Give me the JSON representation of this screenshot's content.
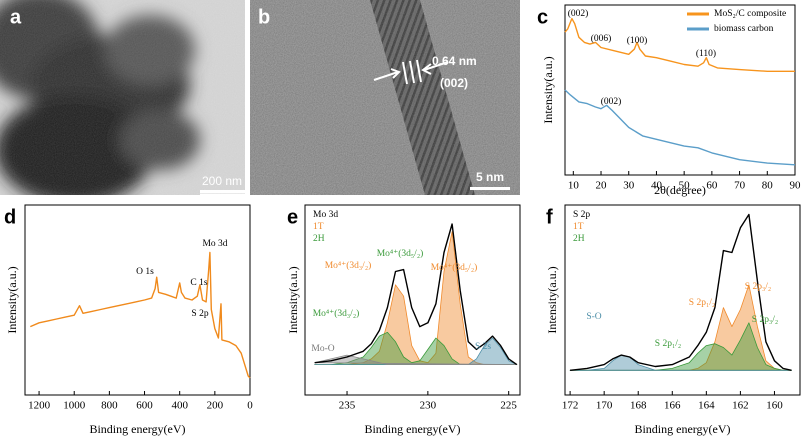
{
  "images": [
    {
      "panel": "a",
      "scale_bar": "200 nm"
    },
    {
      "panel": "b",
      "scale_bar": "5 nm",
      "annotations": [
        "0.64 nm",
        "(002)"
      ]
    }
  ],
  "chart_data": [
    {
      "type": "line",
      "panel": "c",
      "xlabel": "2θ(degree)",
      "ylabel": "Intensity(a.u.)",
      "xlim": [
        7,
        90
      ],
      "xticks": [
        10,
        20,
        30,
        40,
        50,
        60,
        70,
        80,
        90
      ],
      "ylim": [
        0,
        10
      ],
      "legend": "upper right",
      "series": [
        {
          "name": "MoS₂/C composite",
          "color": "#f7941d",
          "x": [
            7,
            8,
            9,
            9.5,
            10.5,
            12,
            14,
            16,
            18,
            20,
            25,
            30,
            32,
            33,
            34,
            36,
            40,
            45,
            50,
            55,
            57,
            58,
            59,
            62,
            70,
            80,
            90
          ],
          "values": [
            8.4,
            8.6,
            9.0,
            9.2,
            8.9,
            8.1,
            7.8,
            7.7,
            7.8,
            7.5,
            7.3,
            7.1,
            7.4,
            7.8,
            7.4,
            7.0,
            6.9,
            6.7,
            6.5,
            6.4,
            6.6,
            6.9,
            6.5,
            6.3,
            6.2,
            6.1,
            6.1
          ]
        },
        {
          "name": "biomass carbon",
          "color": "#5b9ec9",
          "x": [
            7,
            9,
            12,
            15,
            18,
            20,
            22,
            24,
            27,
            30,
            35,
            40,
            45,
            50,
            55,
            60,
            70,
            80,
            90
          ],
          "values": [
            5.0,
            4.7,
            4.3,
            4.2,
            4.0,
            3.9,
            4.1,
            3.8,
            3.3,
            2.8,
            2.3,
            2.1,
            1.9,
            1.7,
            1.6,
            1.3,
            0.9,
            0.7,
            0.6
          ]
        }
      ],
      "annotations": [
        {
          "text": "(002)",
          "color": "#000000"
        },
        {
          "text": "(006)",
          "color": "#000000"
        },
        {
          "text": "(100)",
          "color": "#000000"
        },
        {
          "text": "(110)",
          "color": "#000000"
        },
        {
          "text": "(002)",
          "color": "#000000"
        }
      ]
    },
    {
      "type": "line",
      "panel": "d",
      "xlabel": "Binding energy(eV)",
      "ylabel": "Intensity(a.u.)",
      "xlim": [
        1280,
        0
      ],
      "xticks": [
        1200,
        1000,
        800,
        600,
        400,
        200,
        0
      ],
      "ylim": [
        0,
        10
      ],
      "x": [
        1250,
        1200,
        1150,
        1100,
        1050,
        1000,
        970,
        950,
        900,
        850,
        800,
        750,
        700,
        650,
        600,
        560,
        540,
        531,
        520,
        480,
        450,
        420,
        400,
        390,
        370,
        330,
        300,
        285,
        270,
        250,
        235,
        228,
        220,
        200,
        180,
        165,
        160,
        120,
        80,
        50,
        30,
        10,
        0
      ],
      "series": [
        {
          "color": "#f08a1c",
          "values": [
            3.6,
            3.8,
            3.9,
            4.0,
            4.1,
            4.2,
            4.7,
            4.3,
            4.4,
            4.5,
            4.6,
            4.7,
            4.8,
            4.9,
            5.0,
            5.1,
            5.6,
            6.2,
            5.4,
            5.3,
            5.2,
            5.1,
            5.9,
            5.4,
            5.1,
            5.0,
            5.2,
            5.8,
            5.0,
            4.9,
            6.6,
            7.5,
            4.5,
            3.5,
            3.0,
            4.8,
            2.9,
            2.8,
            2.6,
            2.2,
            1.6,
            1.0,
            0.9
          ]
        }
      ],
      "annotations": [
        {
          "text": "O 1s",
          "color": "#000000"
        },
        {
          "text": "C 1s",
          "color": "#000000"
        },
        {
          "text": "Mo 3d",
          "color": "#000000"
        },
        {
          "text": "S 2p",
          "color": "#000000"
        }
      ]
    },
    {
      "type": "line",
      "panel": "e",
      "xlabel": "Binding energy(eV)",
      "ylabel": "Intensity(a.u.)",
      "xlim": [
        237.6,
        224.3
      ],
      "xticks": [
        235,
        230,
        225
      ],
      "ylim": [
        0,
        10
      ],
      "legend": "upper left",
      "x": [
        237,
        236,
        235,
        234,
        233.5,
        233,
        232.5,
        232,
        231.5,
        231,
        230.5,
        230,
        229.5,
        229,
        228.5,
        228,
        227.5,
        227,
        226.5,
        226,
        225.5,
        225,
        224.5
      ],
      "series": [
        {
          "name": "Mo 3d",
          "color": "#000000",
          "values": [
            1.7,
            1.8,
            2.0,
            2.3,
            2.7,
            3.4,
            4.6,
            6.5,
            6.6,
            4.6,
            3.6,
            3.8,
            4.8,
            7.5,
            9.0,
            5.5,
            2.8,
            2.4,
            2.7,
            3.1,
            2.6,
            1.9,
            1.6
          ]
        },
        {
          "name": "1T",
          "color": "#f08a2c",
          "fill": true,
          "values": [
            1.6,
            1.6,
            1.6,
            1.7,
            1.9,
            2.3,
            3.8,
            5.8,
            5.2,
            2.6,
            1.8,
            1.7,
            2.2,
            6.5,
            8.6,
            4.8,
            2.0,
            1.7,
            1.6,
            1.6,
            1.6,
            1.6,
            1.6
          ]
        },
        {
          "name": "2H",
          "color": "#3a9a3a",
          "fill": true,
          "values": [
            1.6,
            1.6,
            1.7,
            2.0,
            2.5,
            3.1,
            3.3,
            2.8,
            2.0,
            1.7,
            1.8,
            2.4,
            3.0,
            2.6,
            1.9,
            1.6,
            1.6,
            1.6,
            1.6,
            1.6,
            1.6,
            1.6,
            1.6
          ]
        },
        {
          "color": "#4e8fa8",
          "fill": true,
          "values": [
            1.6,
            1.6,
            1.6,
            1.6,
            1.6,
            1.6,
            1.6,
            1.6,
            1.6,
            1.6,
            1.6,
            1.6,
            1.6,
            1.6,
            1.6,
            1.6,
            1.6,
            1.9,
            2.6,
            3.0,
            2.5,
            1.8,
            1.6
          ]
        },
        {
          "color": "#8a8a8a",
          "fill": true,
          "values": [
            1.7,
            1.9,
            2.1,
            1.9,
            1.8,
            1.7,
            1.6,
            1.6,
            1.6,
            1.6,
            1.6,
            1.6,
            1.6,
            1.6,
            1.6,
            1.6,
            1.6,
            1.6,
            1.6,
            1.6,
            1.6,
            1.6,
            1.6
          ]
        }
      ],
      "annotations": [
        {
          "text": "Mo⁴⁺(3d₃/₂)",
          "color": "#f08a2c"
        },
        {
          "text": "Mo⁴⁺(3d₅/₂)",
          "color": "#3a9a3a"
        },
        {
          "text": "Mo⁴⁺(3d₅/₂)",
          "color": "#f08a2c"
        },
        {
          "text": "Mo⁴⁺(3d₃/₂)",
          "color": "#3a9a3a"
        },
        {
          "text": "Mo-O",
          "color": "#777777"
        },
        {
          "text": "S 2s",
          "color": "#4e8fa8"
        }
      ]
    },
    {
      "type": "line",
      "panel": "f",
      "xlabel": "Binding energy(eV)",
      "ylabel": "Intensity(a.u.)",
      "xlim": [
        172.3,
        158.5
      ],
      "xticks": [
        172,
        170,
        168,
        166,
        164,
        162,
        160
      ],
      "ylim": [
        0,
        10
      ],
      "legend": "upper left",
      "x": [
        172,
        171,
        170,
        169.5,
        169,
        168.5,
        168,
        167,
        166,
        165,
        164.5,
        164,
        163.5,
        163,
        162.5,
        162,
        161.5,
        161,
        160.5,
        160,
        159.5,
        159
      ],
      "series": [
        {
          "name": "S 2p",
          "color": "#000000",
          "values": [
            1.3,
            1.4,
            1.6,
            1.9,
            2.1,
            2.0,
            1.7,
            1.5,
            1.6,
            2.0,
            2.6,
            3.3,
            4.6,
            7.6,
            7.5,
            8.8,
            9.5,
            6.0,
            2.8,
            1.8,
            1.4,
            1.3
          ]
        },
        {
          "name": "1T",
          "color": "#f08a2c",
          "fill": true,
          "values": [
            1.3,
            1.3,
            1.3,
            1.3,
            1.3,
            1.3,
            1.3,
            1.3,
            1.3,
            1.3,
            1.4,
            1.7,
            2.8,
            4.6,
            3.6,
            4.5,
            5.8,
            3.6,
            1.8,
            1.4,
            1.3,
            1.3
          ]
        },
        {
          "name": "2H",
          "color": "#3a9a3a",
          "fill": true,
          "values": [
            1.3,
            1.3,
            1.3,
            1.3,
            1.3,
            1.3,
            1.3,
            1.3,
            1.4,
            1.7,
            2.2,
            2.6,
            2.7,
            2.5,
            2.1,
            2.9,
            3.8,
            2.5,
            1.6,
            1.4,
            1.3,
            1.3
          ]
        },
        {
          "color": "#4e8fa8",
          "fill": true,
          "values": [
            1.3,
            1.3,
            1.4,
            1.8,
            2.1,
            2.0,
            1.6,
            1.3,
            1.3,
            1.3,
            1.3,
            1.3,
            1.3,
            1.3,
            1.3,
            1.3,
            1.3,
            1.3,
            1.3,
            1.3,
            1.3,
            1.3
          ]
        }
      ],
      "annotations": [
        {
          "text": "S-O",
          "color": "#4e8fa8"
        },
        {
          "text": "S 2p₁/₂",
          "color": "#3a9a3a"
        },
        {
          "text": "S 2p₁/₂",
          "color": "#f08a2c"
        },
        {
          "text": "S 2p₃/₂",
          "color": "#f08a2c"
        },
        {
          "text": "S 2p₃/₂",
          "color": "#3a9a3a"
        }
      ]
    }
  ]
}
